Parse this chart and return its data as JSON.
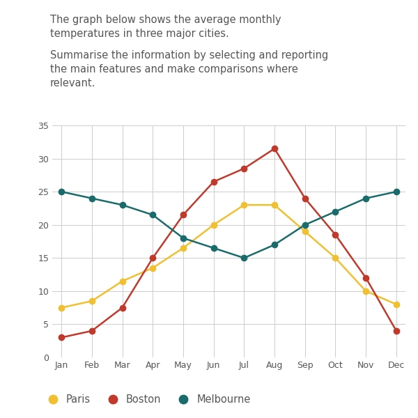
{
  "months": [
    "Jan",
    "Feb",
    "Mar",
    "Apr",
    "May",
    "Jun",
    "Jul",
    "Aug",
    "Sep",
    "Oct",
    "Nov",
    "Dec"
  ],
  "paris": [
    7.5,
    8.5,
    11.5,
    13.5,
    16.5,
    20.0,
    23.0,
    23.0,
    19.0,
    15.0,
    10.0,
    8.0
  ],
  "boston": [
    3.0,
    4.0,
    7.5,
    15.0,
    21.5,
    26.5,
    28.5,
    31.5,
    24.0,
    18.5,
    12.0,
    4.0
  ],
  "melbourne": [
    25.0,
    24.0,
    23.0,
    21.5,
    18.0,
    16.5,
    15.0,
    17.0,
    20.0,
    22.0,
    24.0,
    25.0
  ],
  "paris_color": "#f0c030",
  "boston_color": "#c0392b",
  "melbourne_color": "#1a6b6b",
  "bg_color": "#ffffff",
  "grid_color": "#cccccc",
  "ylim": [
    0,
    35
  ],
  "yticks": [
    0,
    5,
    10,
    15,
    20,
    25,
    30,
    35
  ],
  "text_line1": "The graph below shows the average monthly",
  "text_line2": "temperatures in three major cities.",
  "text_line3": "Summarise the information by selecting and reporting",
  "text_line4": "the main features and make comparisons where",
  "text_line5": "relevant.",
  "legend_paris": "Paris",
  "legend_boston": "Boston",
  "legend_melbourne": "Melbourne",
  "marker_size": 6,
  "line_width": 1.8,
  "text_color": "#555555",
  "text_fontsize": 10.5
}
